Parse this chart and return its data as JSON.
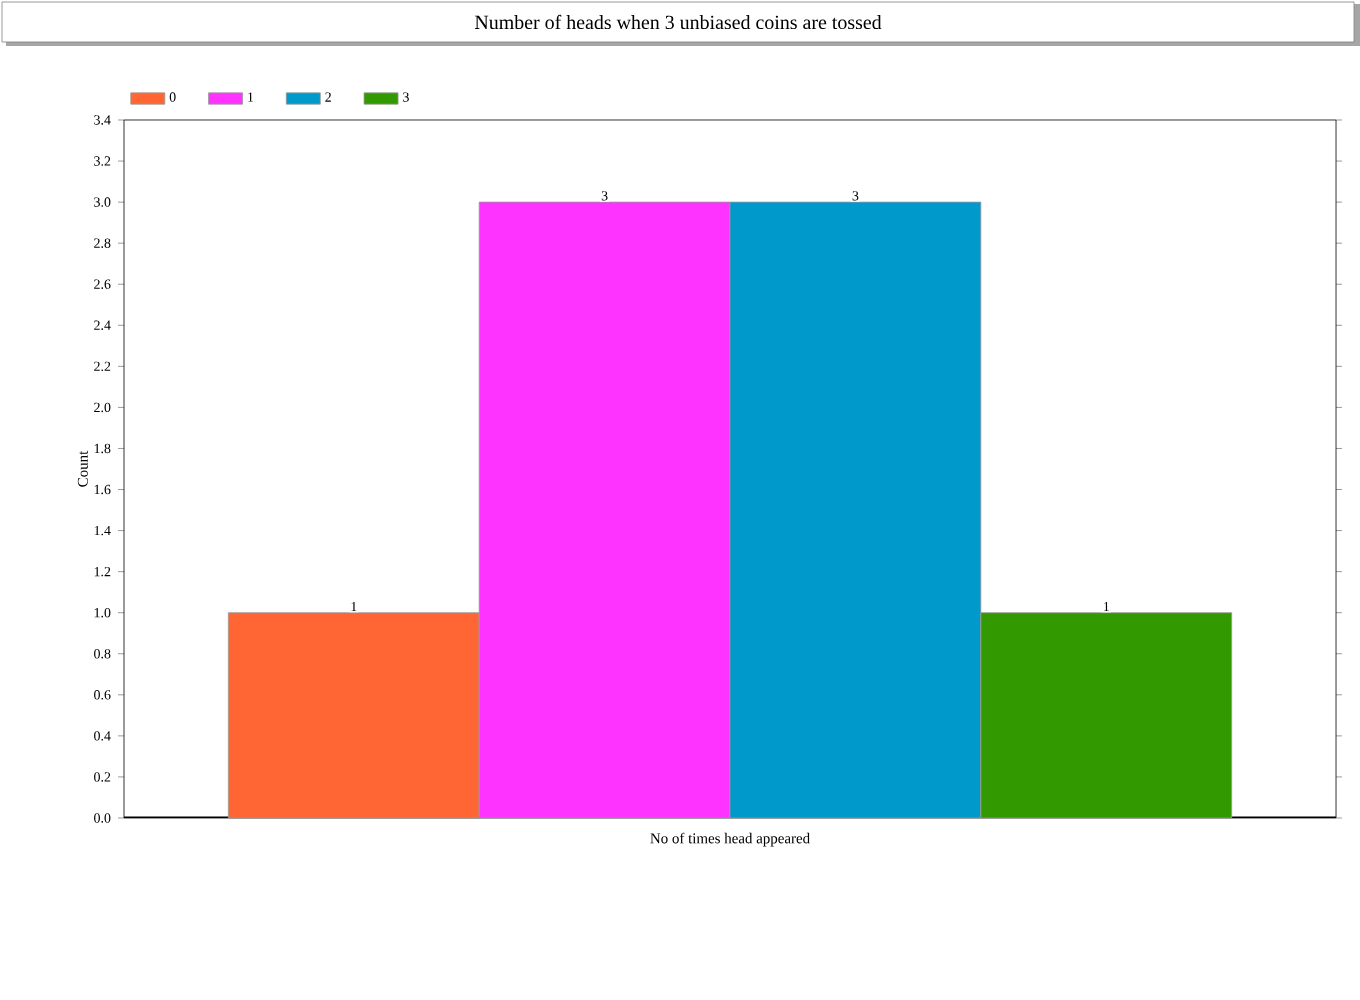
{
  "chart_data": {
    "type": "bar",
    "title": "Number of heads when 3 unbiased coins are tossed",
    "xlabel": "No of times head appeared",
    "ylabel": "Count",
    "categories": [
      null
    ],
    "series": [
      {
        "name": "0",
        "color": "#ff6633",
        "values": [
          1
        ]
      },
      {
        "name": "1",
        "color": "#ff33ff",
        "values": [
          3
        ]
      },
      {
        "name": "2",
        "color": "#0099cc",
        "values": [
          3
        ]
      },
      {
        "name": "3",
        "color": "#339900",
        "values": [
          1
        ]
      }
    ],
    "ylim": [
      0,
      3.4
    ],
    "yticks": [
      {
        "value": 0,
        "label": "0.0"
      },
      0.2,
      0.4,
      0.6,
      0.8,
      {
        "value": 1,
        "label": "1.0"
      },
      1.2,
      1.4,
      1.6,
      1.8,
      {
        "value": 2,
        "label": "2.0"
      },
      2.2,
      2.4,
      2.6,
      2.8,
      {
        "value": 3,
        "label": "3.0"
      },
      3.2,
      3.4
    ],
    "data_labels": true,
    "legend": "top left"
  }
}
